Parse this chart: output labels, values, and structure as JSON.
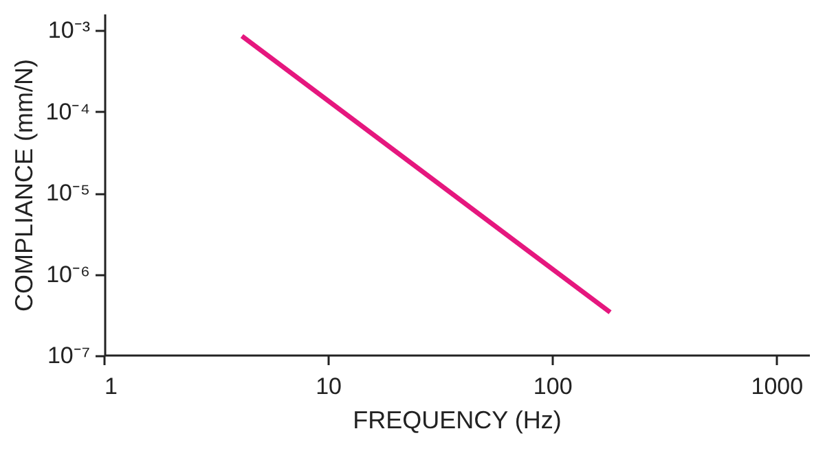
{
  "chart_data": {
    "type": "line",
    "xlabel": "FREQUENCY (Hz)",
    "ylabel": "COMPLIANCE (mm/N)",
    "x": [
      4.1,
      180
    ],
    "series": [
      {
        "color": "#e5177e",
        "values": [
          0.00085,
          3.4e-07
        ]
      }
    ],
    "log": "xy",
    "xlim": [
      1,
      1400
    ],
    "xticks": [
      1,
      10,
      100,
      1000
    ],
    "ylim": [
      1e-07,
      0.0016
    ],
    "yticks": [
      {
        "value": 1e-07,
        "label": "10⁻⁷"
      },
      {
        "value": 1e-06,
        "label": "10⁻⁶"
      },
      {
        "value": 1e-05,
        "label": "10⁻⁵"
      },
      {
        "value": 0.0001,
        "label": "10⁻⁴"
      },
      {
        "value": 0.001,
        "label": "10⁻³"
      }
    ],
    "grid": false,
    "marker": "none",
    "line_style": "solid"
  }
}
